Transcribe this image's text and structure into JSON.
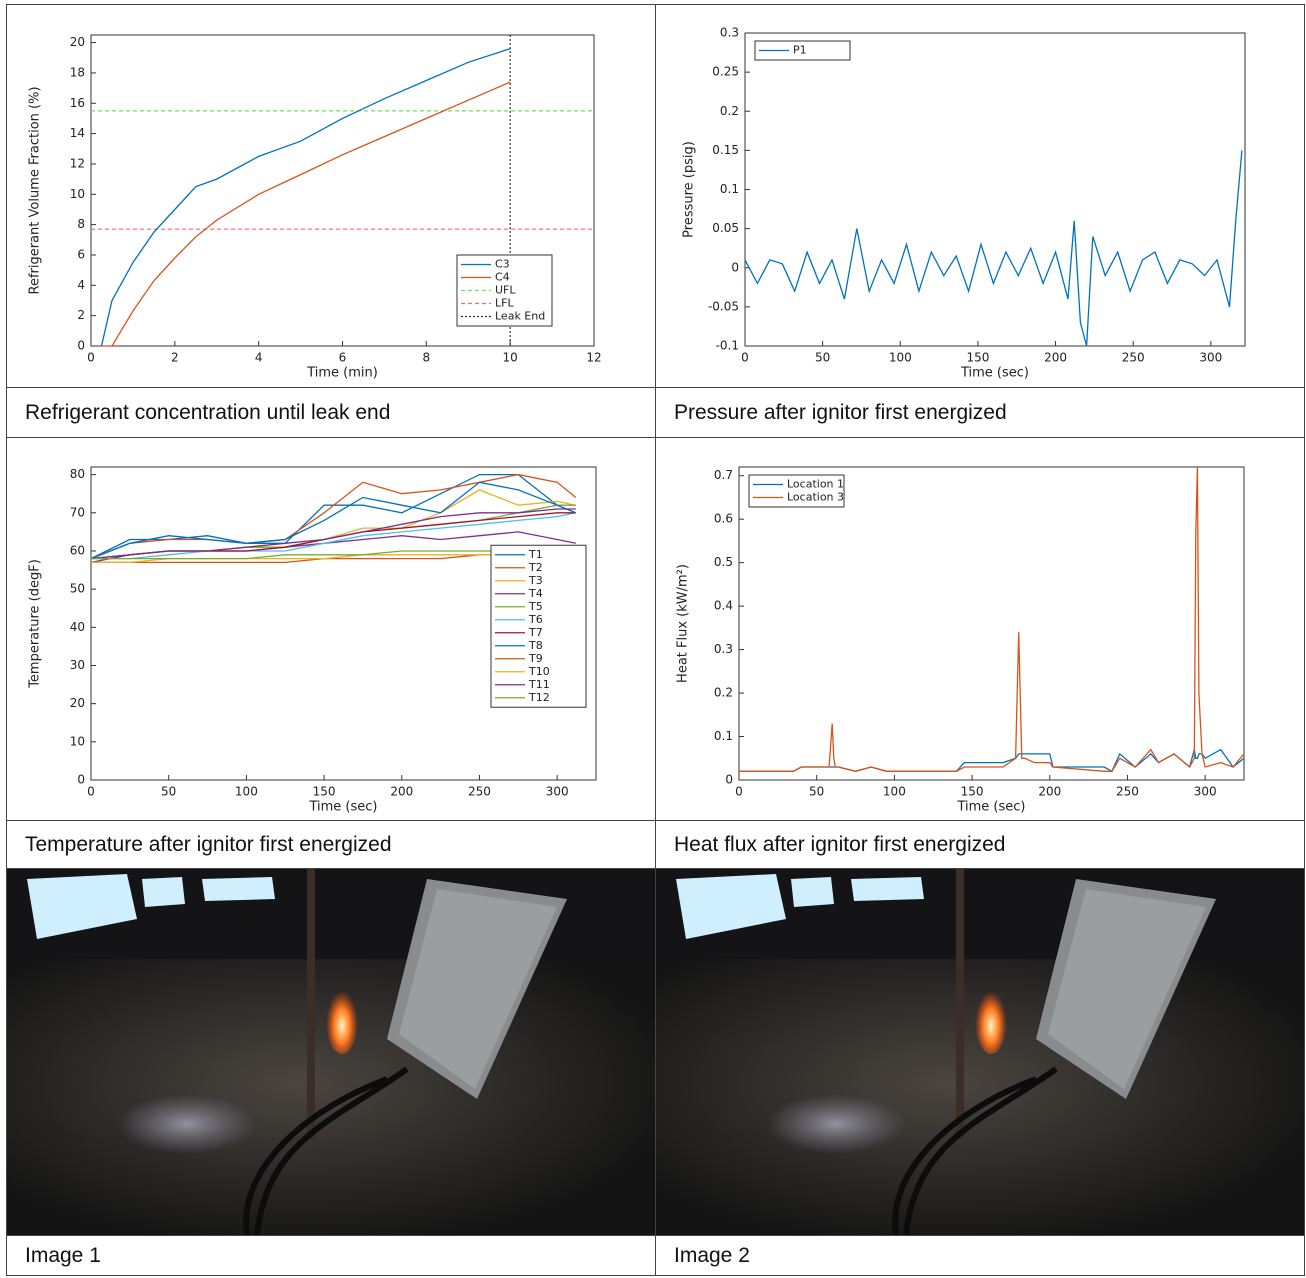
{
  "chart_data": [
    {
      "type": "line",
      "caption": "Refrigerant concentration until leak end",
      "xlabel": "Time (min)",
      "ylabel": "Refrigerant Volume Fraction (%)",
      "xlim": [
        0,
        12
      ],
      "xticks": [
        0,
        2,
        4,
        6,
        8,
        10,
        12
      ],
      "ylim": [
        0,
        20.5
      ],
      "yticks": [
        0,
        2,
        4,
        6,
        8,
        10,
        12,
        14,
        16,
        18,
        20
      ],
      "legend": "lower right",
      "x": [
        0.25,
        0.5,
        1,
        1.5,
        2,
        2.5,
        3,
        4,
        5,
        6,
        7,
        8,
        9,
        10
      ],
      "series": [
        {
          "name": "C3",
          "color": "#0072bd",
          "values": [
            0,
            3,
            5.5,
            7.5,
            9,
            10.5,
            11,
            12.5,
            13.5,
            15,
            16.3,
            17.5,
            18.7,
            19.6
          ]
        },
        {
          "name": "C4",
          "color": "#d95319",
          "values": [
            0,
            0,
            2.3,
            4.3,
            5.8,
            7.2,
            8.3,
            10,
            11.3,
            12.6,
            13.8,
            15,
            16.2,
            17.4
          ]
        }
      ],
      "hlines": [
        {
          "name": "UFL",
          "value": 15.5,
          "color": "#77dd66",
          "style": "dashed"
        },
        {
          "name": "LFL",
          "value": 7.7,
          "color": "#ee6677",
          "style": "dashed"
        }
      ],
      "vlines": [
        {
          "name": "Leak End",
          "value": 10,
          "color": "#333333",
          "style": "dotted"
        }
      ]
    },
    {
      "type": "line",
      "caption": "Pressure after ignitor first energized",
      "xlabel": "Time (sec)",
      "ylabel": "Pressure (psig)",
      "xlim": [
        0,
        322
      ],
      "xticks": [
        0,
        50,
        100,
        150,
        200,
        250,
        300
      ],
      "ylim": [
        -0.1,
        0.3
      ],
      "yticks": [
        -0.1,
        -0.05,
        0,
        0.05,
        0.1,
        0.15,
        0.2,
        0.25,
        0.3
      ],
      "legend": "upper left",
      "x": [
        0,
        8,
        16,
        24,
        32,
        40,
        48,
        56,
        64,
        72,
        80,
        88,
        96,
        104,
        112,
        120,
        128,
        136,
        144,
        152,
        160,
        168,
        176,
        184,
        192,
        200,
        208,
        212,
        216,
        220,
        224,
        232,
        240,
        248,
        256,
        264,
        272,
        280,
        288,
        296,
        304,
        312,
        316,
        320
      ],
      "series": [
        {
          "name": "P1",
          "color": "#0072bd",
          "values": [
            0.01,
            -0.02,
            0.01,
            0.005,
            -0.03,
            0.02,
            -0.02,
            0.01,
            -0.04,
            0.05,
            -0.03,
            0.01,
            -0.02,
            0.03,
            -0.03,
            0.02,
            -0.01,
            0.015,
            -0.03,
            0.03,
            -0.02,
            0.02,
            -0.01,
            0.025,
            -0.02,
            0.02,
            -0.04,
            0.06,
            -0.07,
            -0.1,
            0.04,
            -0.01,
            0.02,
            -0.03,
            0.01,
            0.02,
            -0.02,
            0.01,
            0.005,
            -0.01,
            0.01,
            -0.05,
            0.06,
            0.15
          ]
        }
      ]
    },
    {
      "type": "line",
      "caption": "Temperature after ignitor first energized",
      "xlabel": "Time (sec)",
      "ylabel": "Temperature (degF)",
      "xlim": [
        0,
        325
      ],
      "xticks": [
        0,
        50,
        100,
        150,
        200,
        250,
        300
      ],
      "ylim": [
        0,
        82
      ],
      "yticks": [
        0,
        10,
        20,
        30,
        40,
        50,
        60,
        70,
        80
      ],
      "legend": "right",
      "x": [
        0,
        25,
        50,
        75,
        100,
        125,
        150,
        175,
        200,
        225,
        250,
        275,
        300,
        312
      ],
      "series": [
        {
          "name": "T1",
          "color": "#0072bd",
          "values": [
            58,
            63,
            63,
            64,
            62,
            62,
            72,
            72,
            70,
            75,
            80,
            80,
            72,
            70
          ]
        },
        {
          "name": "T2",
          "color": "#d95319",
          "values": [
            58,
            62,
            63,
            63,
            62,
            63,
            70,
            78,
            75,
            76,
            78,
            80,
            78,
            74
          ]
        },
        {
          "name": "T3",
          "color": "#edb120",
          "values": [
            58,
            59,
            60,
            60,
            61,
            61,
            63,
            66,
            66,
            70,
            76,
            72,
            73,
            72
          ]
        },
        {
          "name": "T4",
          "color": "#7e2f8e",
          "values": [
            57,
            59,
            60,
            60,
            60,
            61,
            62,
            63,
            64,
            63,
            64,
            65,
            63,
            62
          ]
        },
        {
          "name": "T5",
          "color": "#77ac30",
          "values": [
            58,
            59,
            60,
            60,
            61,
            61,
            63,
            65,
            66,
            67,
            68,
            70,
            72,
            72
          ]
        },
        {
          "name": "T6",
          "color": "#4dbeee",
          "values": [
            58,
            58,
            59,
            60,
            60,
            60,
            62,
            64,
            65,
            66,
            67,
            68,
            69,
            70
          ]
        },
        {
          "name": "T7",
          "color": "#a2142f",
          "values": [
            58,
            59,
            60,
            60,
            60,
            61,
            63,
            65,
            66,
            67,
            68,
            69,
            70,
            70
          ]
        },
        {
          "name": "T8",
          "color": "#0072bd",
          "values": [
            58,
            62,
            64,
            63,
            62,
            63,
            68,
            74,
            72,
            70,
            78,
            76,
            72,
            70
          ]
        },
        {
          "name": "T9",
          "color": "#d95319",
          "values": [
            57,
            57,
            57,
            57,
            57,
            57,
            58,
            58,
            58,
            58,
            59,
            59,
            59,
            59
          ]
        },
        {
          "name": "T10",
          "color": "#edb120",
          "values": [
            57,
            57,
            58,
            58,
            58,
            58,
            58,
            59,
            59,
            59,
            59,
            59,
            60,
            60
          ]
        },
        {
          "name": "T11",
          "color": "#7e2f8e",
          "values": [
            58,
            59,
            60,
            60,
            61,
            62,
            63,
            65,
            67,
            69,
            70,
            70,
            71,
            71
          ]
        },
        {
          "name": "T12",
          "color": "#77ac30",
          "values": [
            58,
            58,
            58,
            58,
            58,
            59,
            59,
            59,
            60,
            60,
            60,
            60,
            61,
            61
          ]
        }
      ]
    },
    {
      "type": "line",
      "caption": "Heat flux after ignitor first energized",
      "xlabel": "Time (sec)",
      "ylabel": "Heat Flux (kW/m²)",
      "xlim": [
        0,
        325
      ],
      "xticks": [
        0,
        50,
        100,
        150,
        200,
        250,
        300
      ],
      "ylim": [
        0,
        0.72
      ],
      "yticks": [
        0,
        0.1,
        0.2,
        0.3,
        0.4,
        0.5,
        0.6,
        0.7
      ],
      "legend": "upper left",
      "x": [
        0,
        35,
        40,
        58,
        60,
        61,
        62,
        64,
        75,
        85,
        95,
        100,
        140,
        145,
        170,
        178,
        180,
        181,
        182,
        184,
        190,
        200,
        202,
        235,
        240,
        245,
        255,
        265,
        270,
        280,
        290,
        293,
        294,
        295,
        296,
        298,
        300,
        310,
        318,
        325
      ],
      "series": [
        {
          "name": "Location 1",
          "color": "#0072bd",
          "values": [
            0.02,
            0.02,
            0.03,
            0.03,
            0.03,
            0.03,
            0.03,
            0.03,
            0.02,
            0.03,
            0.02,
            0.02,
            0.02,
            0.04,
            0.04,
            0.05,
            0.06,
            0.06,
            0.06,
            0.06,
            0.06,
            0.06,
            0.03,
            0.03,
            0.02,
            0.06,
            0.03,
            0.06,
            0.04,
            0.06,
            0.03,
            0.07,
            0.05,
            0.05,
            0.06,
            0.06,
            0.05,
            0.07,
            0.03,
            0.05
          ]
        },
        {
          "name": "Location 3",
          "color": "#d95319",
          "values": [
            0.02,
            0.02,
            0.03,
            0.03,
            0.13,
            0.05,
            0.03,
            0.03,
            0.02,
            0.03,
            0.02,
            0.02,
            0.02,
            0.03,
            0.03,
            0.05,
            0.34,
            0.2,
            0.05,
            0.05,
            0.04,
            0.04,
            0.03,
            0.02,
            0.02,
            0.05,
            0.03,
            0.07,
            0.04,
            0.06,
            0.03,
            0.05,
            0.57,
            0.72,
            0.2,
            0.06,
            0.03,
            0.04,
            0.03,
            0.06
          ]
        }
      ]
    }
  ],
  "images": [
    {
      "caption": "Image 1"
    },
    {
      "caption": "Image 2"
    }
  ]
}
